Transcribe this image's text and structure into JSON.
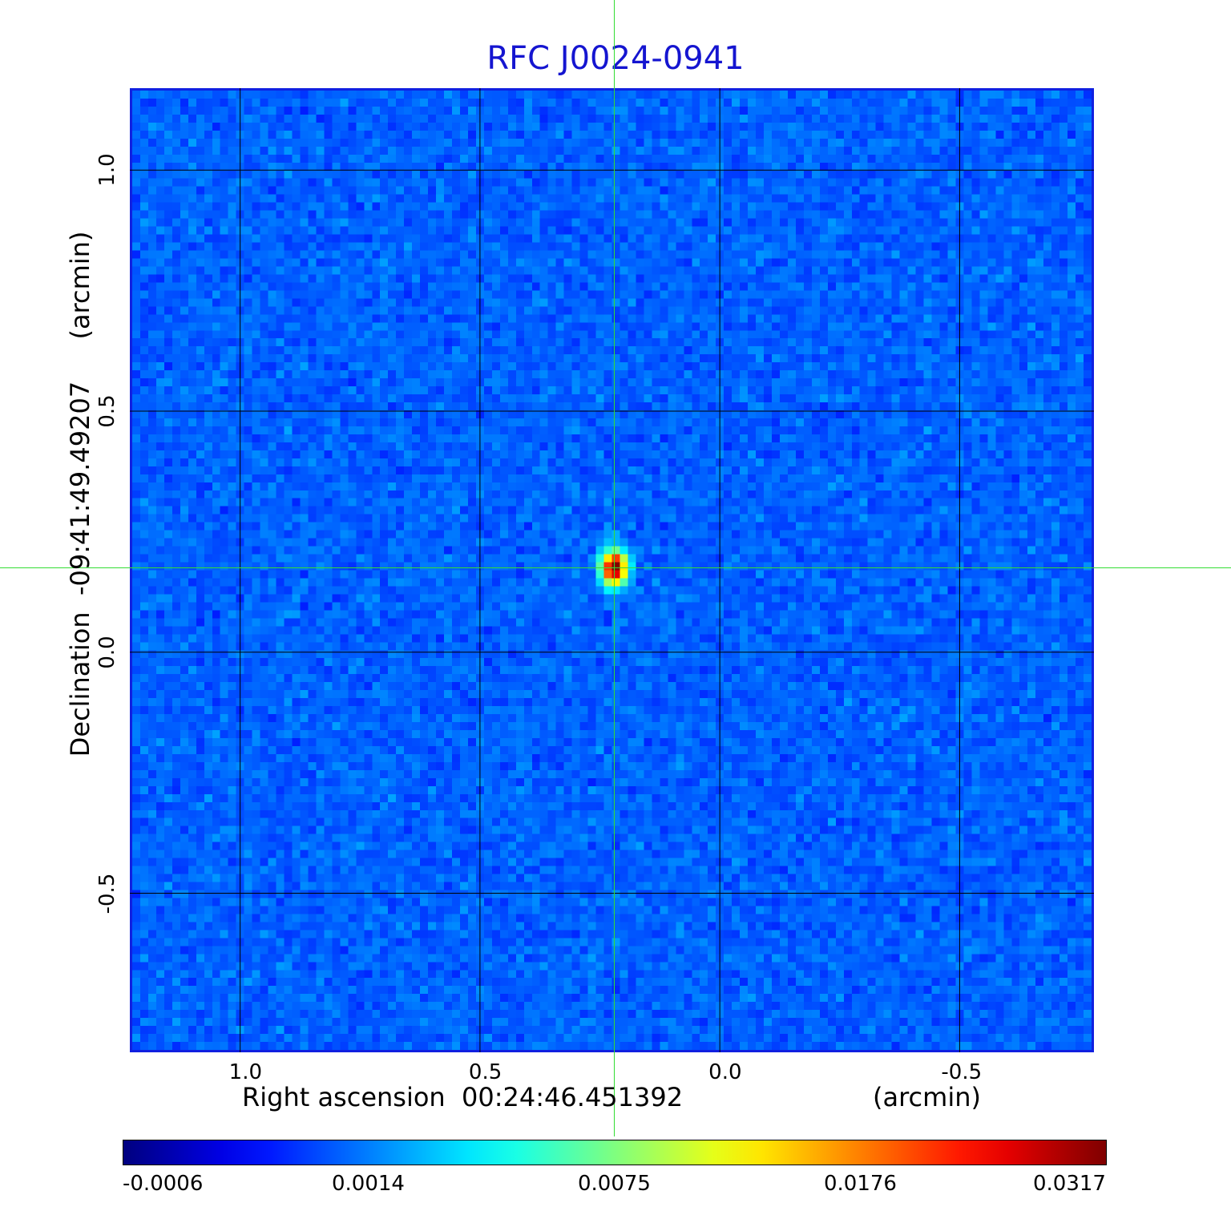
{
  "title": "RFC J0024-0941",
  "chart_data": {
    "type": "heatmap",
    "title": "RFC J0024-0941",
    "xlabel": "Right ascension  00:24:46.451392",
    "xunit": "(arcmin)",
    "ylabel": "Declination  -09:41:49.49207",
    "yunit": "(arcmin)",
    "xlim": [
      1.23,
      -0.78
    ],
    "ylim": [
      -0.83,
      1.17
    ],
    "x_ticks": [
      "1.0",
      "0.5",
      "0.0",
      "-0.5"
    ],
    "x_tick_values": [
      1.0,
      0.5,
      0.0,
      -0.5
    ],
    "y_ticks": [
      "1.0",
      "0.5",
      "0.0",
      "-0.5"
    ],
    "y_tick_values": [
      1.0,
      0.5,
      0.0,
      -0.5
    ],
    "grid": true,
    "crosshair": {
      "x": 0.22,
      "y": 0.175
    },
    "peak": {
      "x": 0.22,
      "y": 0.175,
      "value": 0.0317
    },
    "colorbar": {
      "ticks": [
        "-0.0006",
        "0.0014",
        "0.0075",
        "0.0176",
        "0.0317"
      ],
      "colormap": "jet",
      "min": -0.0006,
      "max": 0.0317
    },
    "colors": {
      "title": "#1515d0",
      "crosshair": "#33dd33",
      "grid": "#000000",
      "background_map": "#1a52f0"
    }
  }
}
